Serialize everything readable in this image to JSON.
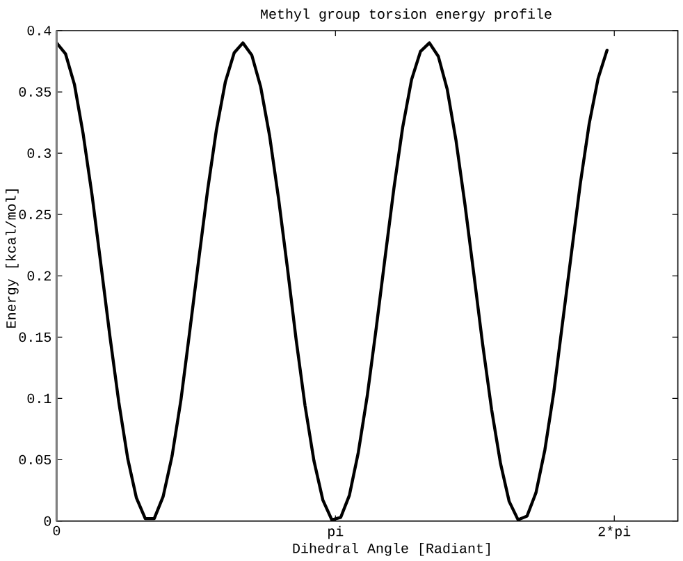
{
  "chart_data": {
    "type": "line",
    "title": "Methyl group torsion energy profile",
    "xlabel": "Dihedral Angle [Radiant]",
    "ylabel": "Energy [kcal/mol]",
    "x": [
      0,
      0.032,
      0.064,
      0.095,
      0.127,
      0.159,
      0.191,
      0.223,
      0.255,
      0.286,
      0.318,
      0.35,
      0.382,
      0.414,
      0.446,
      0.477,
      0.509,
      0.541,
      0.573,
      0.605,
      0.637,
      0.668,
      0.7,
      0.732,
      0.764,
      0.796,
      0.828,
      0.859,
      0.891,
      0.923,
      0.955,
      0.987,
      1.019,
      1.05,
      1.082,
      1.114,
      1.146,
      1.178,
      1.21,
      1.241,
      1.273,
      1.305,
      1.337,
      1.369,
      1.401,
      1.432,
      1.464,
      1.496,
      1.528,
      1.56,
      1.592,
      1.623,
      1.655,
      1.687,
      1.719,
      1.751,
      1.783,
      1.814,
      1.846,
      1.878,
      1.91,
      1.942,
      1.974
    ],
    "series": [
      {
        "color": "#000000",
        "values": [
          0.39,
          0.381,
          0.356,
          0.316,
          0.266,
          0.209,
          0.151,
          0.097,
          0.051,
          0.019,
          0.002,
          0.002,
          0.02,
          0.053,
          0.099,
          0.154,
          0.212,
          0.269,
          0.319,
          0.358,
          0.382,
          0.39,
          0.38,
          0.354,
          0.314,
          0.263,
          0.206,
          0.148,
          0.094,
          0.049,
          0.017,
          0.001,
          0.003,
          0.021,
          0.056,
          0.102,
          0.157,
          0.215,
          0.272,
          0.321,
          0.36,
          0.383,
          0.39,
          0.379,
          0.352,
          0.311,
          0.259,
          0.202,
          0.144,
          0.091,
          0.047,
          0.016,
          0.001,
          0.004,
          0.023,
          0.058,
          0.105,
          0.161,
          0.218,
          0.275,
          0.324,
          0.361,
          0.384
        ]
      }
    ],
    "xlim": [
      0,
      2.228
    ],
    "xticks": [
      0,
      {
        "value": 1,
        "label": "pi"
      },
      {
        "value": 2,
        "label": "2*pi"
      }
    ],
    "ylim": [
      0,
      0.4
    ],
    "yticks": [
      0,
      0.05,
      0.1,
      0.15,
      0.2,
      0.25,
      0.3,
      0.35,
      0.4
    ],
    "line_style": "solid"
  }
}
